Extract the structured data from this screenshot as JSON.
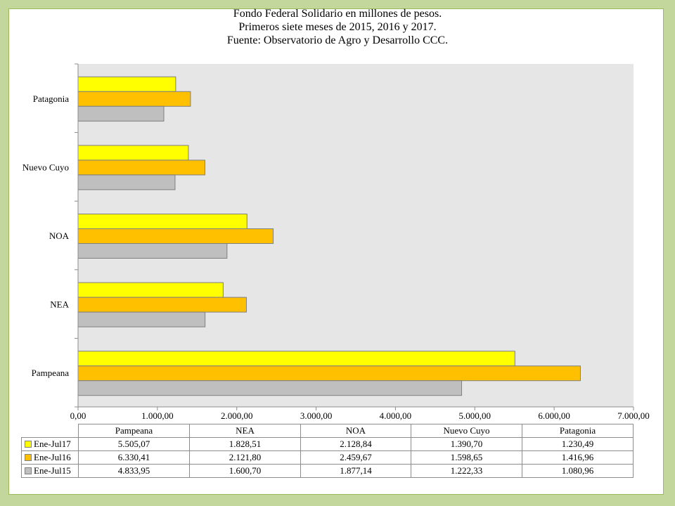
{
  "chart_data": {
    "type": "bar",
    "orientation": "horizontal",
    "title_lines": [
      "Fondo Federal Solidario en millones de pesos.",
      "Primeros siete meses de 2015, 2016 y 2017.",
      "Fuente: Observatorio de Agro y Desarrollo CCC."
    ],
    "categories": [
      "Pampeana",
      "NEA",
      "NOA",
      "Nuevo Cuyo",
      "Patagonia"
    ],
    "series": [
      {
        "name": "Ene-Jul17",
        "color": "#ffff00",
        "values": [
          5505.07,
          1828.51,
          2128.84,
          1390.7,
          1230.49
        ],
        "labels": [
          "5.505,07",
          "1.828,51",
          "2.128,84",
          "1.390,70",
          "1.230,49"
        ]
      },
      {
        "name": "Ene-Jul16",
        "color": "#ffc000",
        "values": [
          6330.41,
          2121.8,
          2459.67,
          1598.65,
          1416.96
        ],
        "labels": [
          "6.330,41",
          "2.121,80",
          "2.459,67",
          "1.598,65",
          "1.416,96"
        ]
      },
      {
        "name": "Ene-Jul15",
        "color": "#bfbfbf",
        "values": [
          4833.95,
          1600.7,
          1877.14,
          1222.33,
          1080.96
        ],
        "labels": [
          "4.833,95",
          "1.600,70",
          "1.877,14",
          "1.222,33",
          "1.080,96"
        ]
      }
    ],
    "xlim": [
      0,
      7000
    ],
    "x_ticks": [
      "0,00",
      "1.000,00",
      "2.000,00",
      "3.000,00",
      "4.000,00",
      "5.000,00",
      "6.000,00",
      "7.000,00"
    ],
    "plot_background": "#e6e6e6",
    "grid": false,
    "legend": "data-table-below"
  }
}
